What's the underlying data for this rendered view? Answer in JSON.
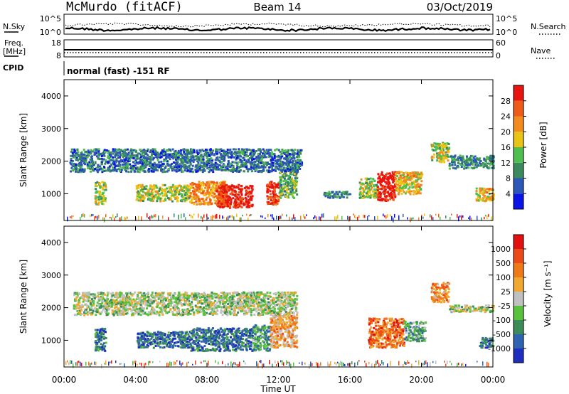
{
  "header": {
    "station": "McMurdo (fitACF)",
    "beam": "Beam 14",
    "date": "03/Oct/2019"
  },
  "nsky": {
    "label": "N.Sky",
    "left_ticks": [
      "10^5",
      "10^0"
    ],
    "right_label": "N.Search",
    "right_ticks": [
      "10^5",
      "10^0"
    ]
  },
  "freq": {
    "label_line1": "Freq.",
    "label_line2": "[MHz]",
    "left_ticks": [
      "18",
      "8"
    ],
    "right_label": "Nave",
    "right_ticks": [
      "60",
      "0"
    ]
  },
  "cpid": {
    "label": "CPID",
    "value": "normal (fast) -151 RF"
  },
  "chart_data": [
    {
      "type": "heatmap",
      "name": "power",
      "ylabel": "Slant Range [km]",
      "xlabel": "",
      "xlim": [
        0,
        24
      ],
      "ylim": [
        180,
        4500
      ],
      "x_ticks": [
        "00:00",
        "04:00",
        "08:00",
        "12:00",
        "16:00",
        "20:00",
        "00:00"
      ],
      "y_ticks": [
        1000,
        2000,
        3000,
        4000
      ],
      "colorbar": {
        "label": "Power [dB]",
        "ticks": [
          "4",
          "8",
          "12",
          "16",
          "20",
          "24",
          "28"
        ],
        "colors": [
          "#0a14e6",
          "#2c56b8",
          "#3b8a5e",
          "#4fbf4f",
          "#e9c414",
          "#f28a1e",
          "#ef5a16",
          "#e8140e"
        ]
      },
      "regions": [
        {
          "x0": 1.7,
          "x1": 2.3,
          "y0": 700,
          "y1": 1400,
          "level": 0.5
        },
        {
          "x0": 4.0,
          "x1": 7.0,
          "y0": 800,
          "y1": 1300,
          "level": 0.5
        },
        {
          "x0": 7.0,
          "x1": 9.0,
          "y0": 700,
          "y1": 1400,
          "level": 0.7
        },
        {
          "x0": 8.5,
          "x1": 10.5,
          "y0": 600,
          "y1": 1300,
          "level": 0.95
        },
        {
          "x0": 11.3,
          "x1": 12.0,
          "y0": 700,
          "y1": 1400,
          "level": 0.9
        },
        {
          "x0": 12.0,
          "x1": 13.0,
          "y0": 900,
          "y1": 1800,
          "level": 0.4
        },
        {
          "x0": 0.3,
          "x1": 13.3,
          "y0": 1700,
          "y1": 2400,
          "level": 0.25
        },
        {
          "x0": 14.5,
          "x1": 16.0,
          "y0": 900,
          "y1": 1100,
          "level": 0.3
        },
        {
          "x0": 16.5,
          "x1": 17.5,
          "y0": 900,
          "y1": 1500,
          "level": 0.5
        },
        {
          "x0": 17.5,
          "x1": 18.5,
          "y0": 800,
          "y1": 1700,
          "level": 1.0
        },
        {
          "x0": 18.5,
          "x1": 20.0,
          "y0": 1000,
          "y1": 1700,
          "level": 0.6
        },
        {
          "x0": 20.5,
          "x1": 21.5,
          "y0": 2000,
          "y1": 2600,
          "level": 0.5
        },
        {
          "x0": 21.5,
          "x1": 24.0,
          "y0": 1800,
          "y1": 2200,
          "level": 0.3
        },
        {
          "x0": 23.0,
          "x1": 24.0,
          "y0": 800,
          "y1": 1200,
          "level": 0.6
        }
      ]
    },
    {
      "type": "heatmap",
      "name": "velocity",
      "ylabel": "Slant Range [km]",
      "xlabel": "Time UT",
      "xlim": [
        0,
        24
      ],
      "ylim": [
        180,
        4500
      ],
      "x_ticks": [
        "00:00",
        "04:00",
        "08:00",
        "12:00",
        "16:00",
        "20:00",
        "00:00"
      ],
      "y_ticks": [
        1000,
        2000,
        3000,
        4000
      ],
      "colorbar": {
        "label": "Velocity [m s⁻¹]",
        "ticks": [
          "1000",
          "500",
          "100",
          "25",
          "-25",
          "-100",
          "-500",
          "-1000"
        ],
        "colors": [
          "#1e2fc0",
          "#2f62b0",
          "#3c8c5a",
          "#58c23a",
          "#c0c0c0",
          "#f0a830",
          "#f07a18",
          "#ec4a16",
          "#e41010"
        ]
      },
      "regions": [
        {
          "x0": 1.7,
          "x1": 2.3,
          "y0": 700,
          "y1": 1400,
          "level": 0.2
        },
        {
          "x0": 4.0,
          "x1": 7.0,
          "y0": 800,
          "y1": 1300,
          "level": 0.2
        },
        {
          "x0": 7.0,
          "x1": 10.5,
          "y0": 700,
          "y1": 1400,
          "level": 0.2
        },
        {
          "x0": 10.5,
          "x1": 11.5,
          "y0": 700,
          "y1": 1500,
          "level": 0.3
        },
        {
          "x0": 11.5,
          "x1": 13.0,
          "y0": 800,
          "y1": 1800,
          "level": 0.65
        },
        {
          "x0": 0.5,
          "x1": 13.0,
          "y0": 1800,
          "y1": 2500,
          "level": 0.45
        },
        {
          "x0": 17.0,
          "x1": 19.0,
          "y0": 800,
          "y1": 1700,
          "level": 0.75
        },
        {
          "x0": 19.0,
          "x1": 20.2,
          "y0": 1000,
          "y1": 1600,
          "level": 0.35
        },
        {
          "x0": 20.5,
          "x1": 21.5,
          "y0": 2200,
          "y1": 2800,
          "level": 0.7
        },
        {
          "x0": 21.5,
          "x1": 24.0,
          "y0": 1900,
          "y1": 2100,
          "level": 0.45
        },
        {
          "x0": 23.2,
          "x1": 24.0,
          "y0": 800,
          "y1": 1100,
          "level": 0.2
        }
      ]
    }
  ]
}
